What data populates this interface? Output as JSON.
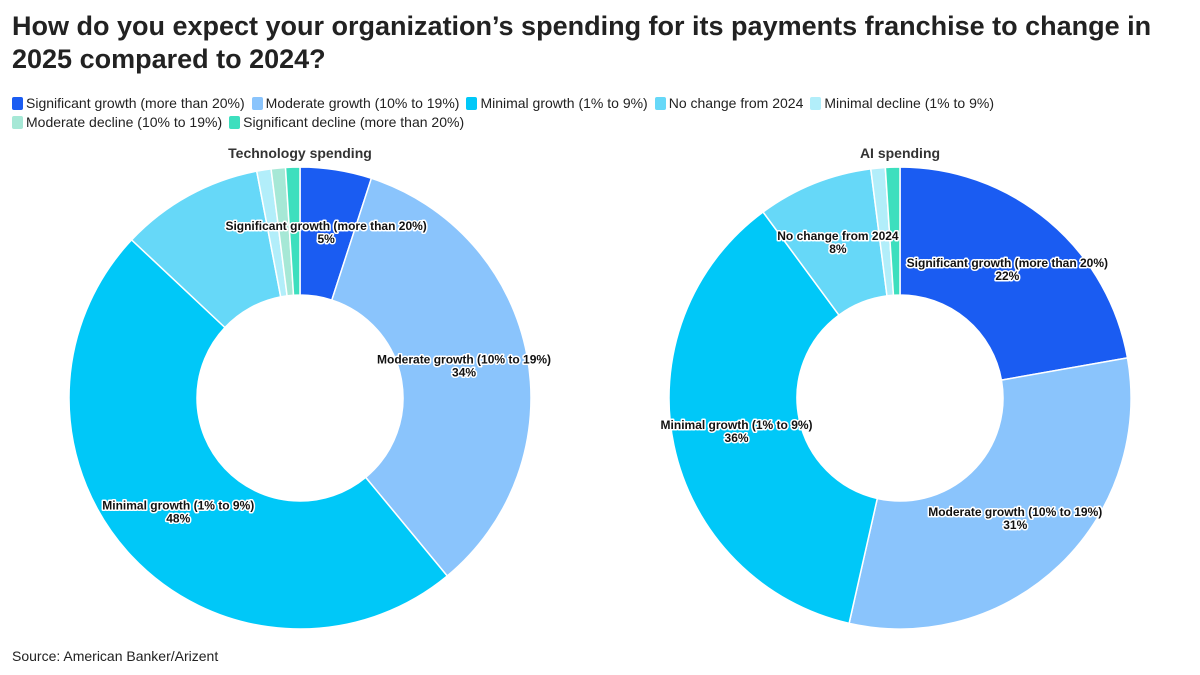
{
  "title": "How do you expect your organization’s spending for its payments franchise to change in 2025 compared to 2024?",
  "source": "Source: American Banker/Arizent",
  "chart_data": [
    {
      "type": "donut",
      "title": "Technology spending",
      "categories": [
        "Significant growth (more than 20%)",
        "Moderate growth (10% to 19%)",
        "Minimal growth (1% to 9%)",
        "No change from 2024",
        "Minimal decline (1% to 9%)",
        "Moderate decline (10% to 19%)",
        "Significant decline (more than 20%)"
      ],
      "values": [
        5,
        34,
        48,
        10,
        1,
        1,
        1
      ],
      "value_labels": [
        "5%",
        "34%",
        "48%",
        null,
        null,
        null,
        null
      ],
      "colors": [
        "#1a5cf2",
        "#8ac4fc",
        "#00c8f8",
        "#66d8f8",
        "#b2eefa",
        "#a6e8d6",
        "#3ddfbe"
      ]
    },
    {
      "type": "donut",
      "title": "AI spending",
      "categories": [
        "Significant growth (more than 20%)",
        "Moderate growth (10% to 19%)",
        "Minimal growth (1% to 9%)",
        "No change from 2024",
        "Minimal decline (1% to 9%)",
        "Moderate decline (10% to 19%)",
        "Significant decline (more than 20%)"
      ],
      "values": [
        22,
        31,
        36,
        8,
        1,
        0,
        1
      ],
      "value_labels": [
        "22%",
        "31%",
        "36%",
        "8%",
        null,
        null,
        null
      ],
      "colors": [
        "#1a5cf2",
        "#8ac4fc",
        "#00c8f8",
        "#66d8f8",
        "#b2eefa",
        "#a6e8d6",
        "#3ddfbe"
      ]
    }
  ]
}
